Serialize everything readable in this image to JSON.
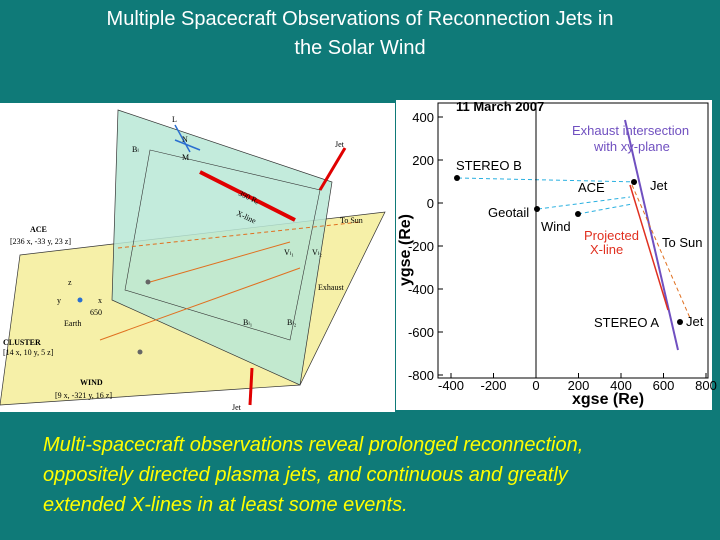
{
  "title_lines": [
    "Multiple Spacecraft Observations of Reconnection Jets in",
    "the Solar Wind"
  ],
  "left_figure": {
    "labels": [
      "L",
      "N",
      "M",
      "Bₗ",
      "Jet",
      "390 Rₑ",
      "X-line",
      "To Sun",
      "ACE",
      "[236 x, -33 y, 23 z]",
      "Vₗ₁",
      "Vₗ₂",
      "Exhaust",
      "y",
      "z",
      "x",
      "Earth",
      "650",
      "CLUSTER",
      "[14 x, 10 y, 5 z]",
      "Bₗ₁",
      "Bₗ₂",
      "WIND",
      "[9 x, -321 y, 16 z]",
      "Jet"
    ]
  },
  "right_figure": {
    "date": "11 March 2007",
    "xlabel": "xgse (Re)",
    "ylabel": "ygse (Re)",
    "xlim": [
      -400,
      800
    ],
    "ylim": [
      -800,
      400
    ],
    "xticks": [
      -400,
      -200,
      0,
      200,
      400,
      600,
      800
    ],
    "yticks": [
      400,
      200,
      0,
      -200,
      -400,
      -600,
      -800
    ],
    "annotations": [
      "Exhaust intersection",
      "with xy-plane",
      "STEREO B",
      "ACE",
      "Jet",
      "Geotail",
      "Wind",
      "Projected",
      "X-line",
      "To Sun",
      "STEREO A",
      "Jet"
    ]
  },
  "caption_lines": [
    "Multi-spacecraft observations reveal prolonged reconnection,",
    "oppositely directed plasma jets, and continuous and greatly",
    "extended X-lines in at least some events."
  ]
}
